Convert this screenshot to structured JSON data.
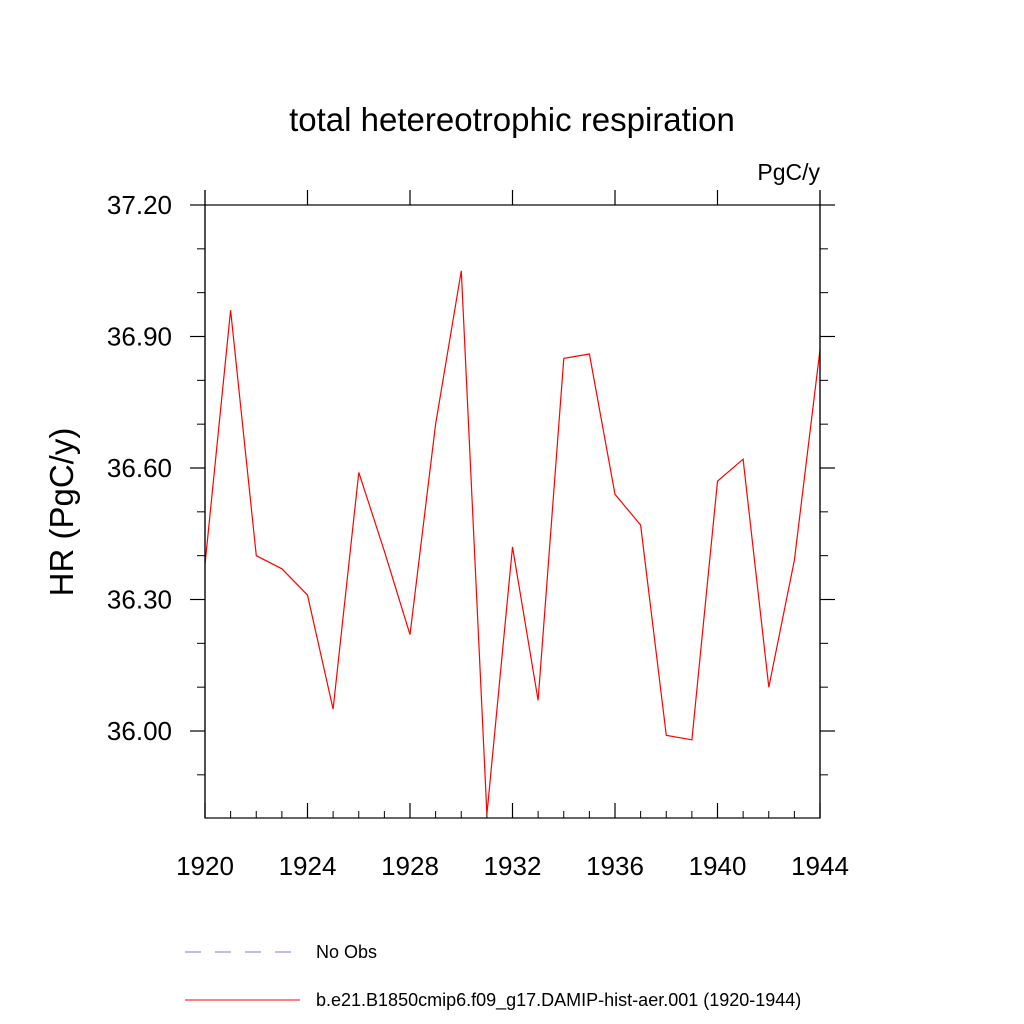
{
  "chart_data": {
    "type": "line",
    "title": "total hetereotrophic respiration",
    "units_label": "PgC/y",
    "ylabel": "HR  (PgC/y)",
    "xlabel": "",
    "xlim": [
      1920,
      1944
    ],
    "ylim": [
      35.8,
      37.24
    ],
    "x_ticks": [
      1920,
      1924,
      1928,
      1932,
      1936,
      1940,
      1944
    ],
    "x_tick_labels": [
      "1920",
      "1924",
      "1928",
      "1932",
      "1936",
      "1940",
      "1944"
    ],
    "x_minor_step": 1,
    "y_ticks": [
      36.0,
      36.3,
      36.6,
      36.9,
      37.2
    ],
    "y_tick_labels": [
      "36.00",
      "36.30",
      "36.60",
      "36.90",
      "37.20"
    ],
    "y_minor_step": 0.1,
    "grid": false,
    "legend_position": "bottom",
    "series": [
      {
        "name": "b.e21.B1850cmip6.f09_g17.DAMIP-hist-aer.001 (1920-1944)",
        "color": "#ff0000",
        "style": "solid",
        "x": [
          1920,
          1921,
          1922,
          1923,
          1924,
          1925,
          1926,
          1927,
          1928,
          1929,
          1930,
          1931,
          1932,
          1933,
          1934,
          1935,
          1936,
          1937,
          1938,
          1939,
          1940,
          1941,
          1942,
          1943,
          1944
        ],
        "y": [
          36.38,
          36.96,
          36.4,
          36.37,
          36.31,
          36.05,
          36.59,
          36.41,
          36.22,
          36.7,
          37.05,
          35.81,
          36.42,
          36.07,
          36.85,
          36.86,
          36.54,
          36.47,
          35.99,
          35.98,
          36.57,
          36.62,
          36.1,
          36.39,
          36.87
        ]
      }
    ],
    "legend": [
      {
        "label": "No Obs",
        "color": "#7b7bd6",
        "style": "dashed"
      },
      {
        "label": "b.e21.B1850cmip6.f09_g17.DAMIP-hist-aer.001 (1920-1944)",
        "color": "#ff0000",
        "style": "solid"
      }
    ]
  }
}
